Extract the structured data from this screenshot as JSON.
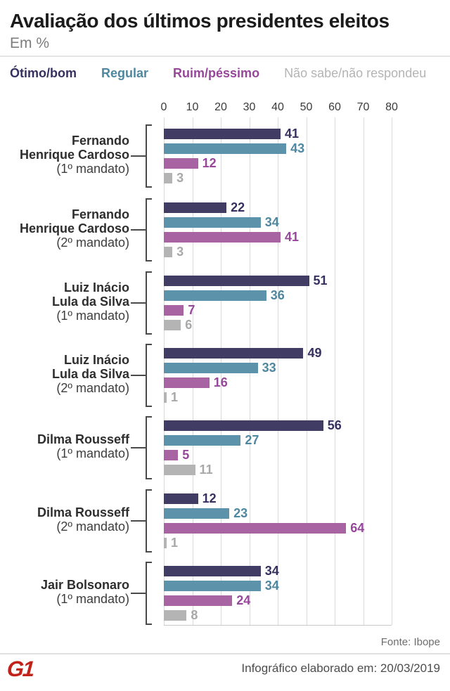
{
  "chart_data": {
    "type": "bar",
    "orientation": "horizontal",
    "title": "Avaliação dos últimos presidentes eleitos",
    "subtitle": "Em %",
    "unit": "%",
    "xlim": [
      0,
      80
    ],
    "x_ticks": [
      0,
      10,
      20,
      30,
      40,
      50,
      60,
      70,
      80
    ],
    "grid": true,
    "legend_position": "top",
    "series": [
      {
        "id": "otimo-bom",
        "name": "Ótimo/bom",
        "color": "#413c64",
        "label_color": "#353060",
        "legend_bold": true
      },
      {
        "id": "regular",
        "name": "Regular",
        "color": "#5d93aa",
        "label_color": "#4e87a0",
        "legend_bold": true
      },
      {
        "id": "ruim-pessimo",
        "name": "Ruim/péssimo",
        "color": "#a763a2",
        "label_color": "#96479a",
        "legend_bold": true
      },
      {
        "id": "nao-sabe",
        "name": "Não sabe/não respondeu",
        "color": "#b4b4b4",
        "label_color": "#a8a8a8",
        "legend_bold": false
      }
    ],
    "groups": [
      {
        "label_lines": [
          "Fernando",
          "Henrique Cardoso"
        ],
        "sublabel": "(1º mandato)",
        "values": [
          41,
          43,
          12,
          3
        ]
      },
      {
        "label_lines": [
          "Fernando",
          "Henrique Cardoso"
        ],
        "sublabel": "(2º mandato)",
        "values": [
          22,
          34,
          41,
          3
        ]
      },
      {
        "label_lines": [
          "Luiz Inácio",
          "Lula da Silva"
        ],
        "sublabel": "(1º mandato)",
        "values": [
          51,
          36,
          7,
          6
        ]
      },
      {
        "label_lines": [
          "Luiz Inácio",
          "Lula da Silva"
        ],
        "sublabel": "(2º mandato)",
        "values": [
          49,
          33,
          16,
          1
        ]
      },
      {
        "label_lines": [
          "Dilma Rousseff"
        ],
        "sublabel": "(1º mandato)",
        "values": [
          56,
          27,
          5,
          11
        ]
      },
      {
        "label_lines": [
          "Dilma Rousseff"
        ],
        "sublabel": "(2º mandato)",
        "values": [
          12,
          23,
          64,
          1
        ]
      },
      {
        "label_lines": [
          "Jair Bolsonaro"
        ],
        "sublabel": "(1º mandato)",
        "values": [
          34,
          34,
          24,
          8
        ]
      }
    ]
  },
  "footer": {
    "source": "Fonte: Ibope",
    "elaborated": "Infográfico elaborado em: 20/03/2019",
    "logo": "G1",
    "logo_color": "#c1231b"
  }
}
